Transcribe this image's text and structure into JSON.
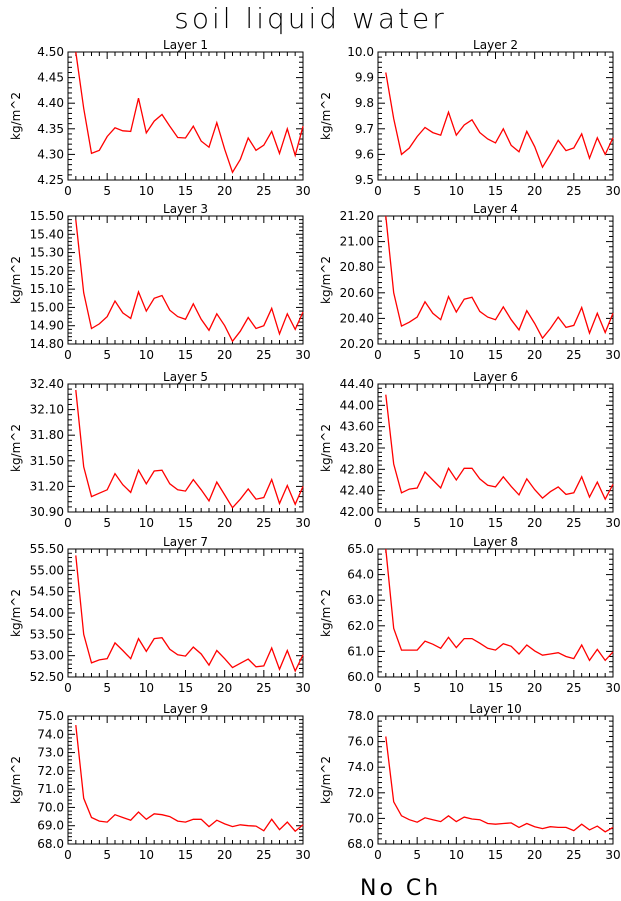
{
  "title": "soil liquid water",
  "footer_label": "No Ch",
  "style": {
    "line_color": "#ff0000",
    "axis_color": "#000000"
  },
  "chart_data": [
    {
      "type": "line",
      "title": "Layer 1",
      "ylabel": "kg/m^2",
      "xlim": [
        0,
        30
      ],
      "xticks": [
        0,
        5,
        10,
        15,
        20,
        25,
        30
      ],
      "ylim": [
        4.25,
        4.5
      ],
      "yticks": [
        "4.25",
        "4.30",
        "4.35",
        "4.40",
        "4.45",
        "4.50"
      ],
      "x": [
        1,
        2,
        3,
        4,
        5,
        6,
        7,
        8,
        9,
        10,
        11,
        12,
        13,
        14,
        15,
        16,
        17,
        18,
        19,
        20,
        21,
        22,
        23,
        24,
        25,
        26,
        27,
        28,
        29,
        30
      ],
      "y": [
        4.51,
        4.39,
        4.302,
        4.308,
        4.335,
        4.352,
        4.346,
        4.345,
        4.41,
        4.342,
        4.365,
        4.378,
        4.355,
        4.333,
        4.332,
        4.355,
        4.326,
        4.314,
        4.362,
        4.31,
        4.265,
        4.29,
        4.332,
        4.308,
        4.318,
        4.345,
        4.302,
        4.35,
        4.298,
        4.355
      ]
    },
    {
      "type": "line",
      "title": "Layer 2",
      "ylabel": "kg/m^2",
      "xlim": [
        0,
        30
      ],
      "xticks": [
        0,
        5,
        10,
        15,
        20,
        25,
        30
      ],
      "ylim": [
        9.5,
        10.0
      ],
      "yticks": [
        "9.5",
        "9.6",
        "9.7",
        "9.8",
        "9.9",
        "10.0"
      ],
      "x": [
        1,
        2,
        3,
        4,
        5,
        6,
        7,
        8,
        9,
        10,
        11,
        12,
        13,
        14,
        15,
        16,
        17,
        18,
        19,
        20,
        21,
        22,
        23,
        24,
        25,
        26,
        27,
        28,
        29,
        30
      ],
      "y": [
        9.92,
        9.74,
        9.6,
        9.625,
        9.67,
        9.705,
        9.685,
        9.675,
        9.765,
        9.675,
        9.715,
        9.735,
        9.685,
        9.66,
        9.645,
        9.7,
        9.635,
        9.61,
        9.69,
        9.63,
        9.55,
        9.6,
        9.655,
        9.615,
        9.625,
        9.68,
        9.585,
        9.665,
        9.6,
        9.665
      ]
    },
    {
      "type": "line",
      "title": "Layer 3",
      "ylabel": "kg/m^2",
      "xlim": [
        0,
        30
      ],
      "xticks": [
        0,
        5,
        10,
        15,
        20,
        25,
        30
      ],
      "ylim": [
        14.8,
        15.5
      ],
      "yticks": [
        "14.80",
        "14.90",
        "15.00",
        "15.10",
        "15.20",
        "15.30",
        "15.40",
        "15.50"
      ],
      "x": [
        1,
        2,
        3,
        4,
        5,
        6,
        7,
        8,
        9,
        10,
        11,
        12,
        13,
        14,
        15,
        16,
        17,
        18,
        19,
        20,
        21,
        22,
        23,
        24,
        25,
        26,
        27,
        28,
        29,
        30
      ],
      "y": [
        15.48,
        15.08,
        14.885,
        14.91,
        14.95,
        15.035,
        14.97,
        14.94,
        15.085,
        14.98,
        15.05,
        15.065,
        14.985,
        14.95,
        14.935,
        15.02,
        14.935,
        14.875,
        14.965,
        14.9,
        14.815,
        14.87,
        14.945,
        14.885,
        14.9,
        14.995,
        14.855,
        14.965,
        14.88,
        14.975
      ]
    },
    {
      "type": "line",
      "title": "Layer 4",
      "ylabel": "kg/m^2",
      "xlim": [
        0,
        30
      ],
      "xticks": [
        0,
        5,
        10,
        15,
        20,
        25,
        30
      ],
      "ylim": [
        20.2,
        21.2
      ],
      "yticks": [
        "20.20",
        "20.40",
        "20.60",
        "20.80",
        "21.00",
        "21.20"
      ],
      "x": [
        1,
        2,
        3,
        4,
        5,
        6,
        7,
        8,
        9,
        10,
        11,
        12,
        13,
        14,
        15,
        16,
        17,
        18,
        19,
        20,
        21,
        22,
        23,
        24,
        25,
        26,
        27,
        28,
        29,
        30
      ],
      "y": [
        21.2,
        20.6,
        20.34,
        20.37,
        20.41,
        20.53,
        20.44,
        20.39,
        20.57,
        20.45,
        20.55,
        20.565,
        20.455,
        20.41,
        20.39,
        20.49,
        20.39,
        20.31,
        20.46,
        20.36,
        20.245,
        20.32,
        20.41,
        20.33,
        20.345,
        20.485,
        20.285,
        20.44,
        20.29,
        20.44
      ]
    },
    {
      "type": "line",
      "title": "Layer 5",
      "ylabel": "kg/m^2",
      "xlim": [
        0,
        30
      ],
      "xticks": [
        0,
        5,
        10,
        15,
        20,
        25,
        30
      ],
      "ylim": [
        30.9,
        32.4
      ],
      "yticks": [
        "30.90",
        "31.20",
        "31.50",
        "31.80",
        "32.10",
        "32.40"
      ],
      "x": [
        1,
        2,
        3,
        4,
        5,
        6,
        7,
        8,
        9,
        10,
        11,
        12,
        13,
        14,
        15,
        16,
        17,
        18,
        19,
        20,
        21,
        22,
        23,
        24,
        25,
        26,
        27,
        28,
        29,
        30
      ],
      "y": [
        32.33,
        31.43,
        31.08,
        31.12,
        31.16,
        31.35,
        31.22,
        31.13,
        31.39,
        31.23,
        31.38,
        31.39,
        31.23,
        31.16,
        31.145,
        31.28,
        31.16,
        31.03,
        31.25,
        31.1,
        30.95,
        31.05,
        31.17,
        31.05,
        31.07,
        31.28,
        31.0,
        31.21,
        30.99,
        31.2
      ]
    },
    {
      "type": "line",
      "title": "Layer 6",
      "ylabel": "kg/m^2",
      "xlim": [
        0,
        30
      ],
      "xticks": [
        0,
        5,
        10,
        15,
        20,
        25,
        30
      ],
      "ylim": [
        42.0,
        44.4
      ],
      "yticks": [
        "42.00",
        "42.40",
        "42.80",
        "43.20",
        "43.60",
        "44.00",
        "44.40"
      ],
      "x": [
        1,
        2,
        3,
        4,
        5,
        6,
        7,
        8,
        9,
        10,
        11,
        12,
        13,
        14,
        15,
        16,
        17,
        18,
        19,
        20,
        21,
        22,
        23,
        24,
        25,
        26,
        27,
        28,
        29,
        30
      ],
      "y": [
        44.2,
        42.9,
        42.36,
        42.43,
        42.45,
        42.75,
        42.6,
        42.45,
        42.82,
        42.6,
        42.82,
        42.82,
        42.62,
        42.5,
        42.47,
        42.66,
        42.48,
        42.32,
        42.62,
        42.42,
        42.26,
        42.38,
        42.47,
        42.33,
        42.36,
        42.66,
        42.28,
        42.56,
        42.24,
        42.52
      ]
    },
    {
      "type": "line",
      "title": "Layer 7",
      "ylabel": "kg/m^2",
      "xlim": [
        0,
        30
      ],
      "xticks": [
        0,
        5,
        10,
        15,
        20,
        25,
        30
      ],
      "ylim": [
        52.5,
        55.5
      ],
      "yticks": [
        "52.50",
        "53.00",
        "53.50",
        "54.00",
        "54.50",
        "55.00",
        "55.50"
      ],
      "x": [
        1,
        2,
        3,
        4,
        5,
        6,
        7,
        8,
        9,
        10,
        11,
        12,
        13,
        14,
        15,
        16,
        17,
        18,
        19,
        20,
        21,
        22,
        23,
        24,
        25,
        26,
        27,
        28,
        29,
        30
      ],
      "y": [
        55.35,
        53.5,
        52.83,
        52.9,
        52.93,
        53.3,
        53.12,
        52.93,
        53.4,
        53.1,
        53.4,
        53.42,
        53.15,
        53.02,
        52.99,
        53.2,
        53.04,
        52.78,
        53.12,
        52.93,
        52.72,
        52.82,
        52.92,
        52.74,
        52.76,
        53.18,
        52.68,
        53.12,
        52.64,
        53.02
      ]
    },
    {
      "type": "line",
      "title": "Layer 8",
      "ylabel": "kg/m^2",
      "xlim": [
        0,
        30
      ],
      "xticks": [
        0,
        5,
        10,
        15,
        20,
        25,
        30
      ],
      "ylim": [
        60.0,
        65.0
      ],
      "yticks": [
        "60.0",
        "61.0",
        "62.0",
        "63.0",
        "64.0",
        "65.0"
      ],
      "x": [
        1,
        2,
        3,
        4,
        5,
        6,
        7,
        8,
        9,
        10,
        11,
        12,
        13,
        14,
        15,
        16,
        17,
        18,
        19,
        20,
        21,
        22,
        23,
        24,
        25,
        26,
        27,
        28,
        29,
        30
      ],
      "y": [
        65.0,
        61.9,
        61.05,
        61.05,
        61.05,
        61.4,
        61.28,
        61.12,
        61.55,
        61.15,
        61.5,
        61.5,
        61.32,
        61.12,
        61.05,
        61.3,
        61.2,
        60.9,
        61.25,
        61.02,
        60.85,
        60.9,
        60.95,
        60.8,
        60.72,
        61.25,
        60.65,
        61.08,
        60.65,
        60.98
      ]
    },
    {
      "type": "line",
      "title": "Layer 9",
      "ylabel": "kg/m^2",
      "xlim": [
        0,
        30
      ],
      "xticks": [
        0,
        5,
        10,
        15,
        20,
        25,
        30
      ],
      "ylim": [
        68.0,
        75.0
      ],
      "yticks": [
        "68.0",
        "69.0",
        "70.0",
        "71.0",
        "72.0",
        "73.0",
        "74.0",
        "75.0"
      ],
      "x": [
        1,
        2,
        3,
        4,
        5,
        6,
        7,
        8,
        9,
        10,
        11,
        12,
        13,
        14,
        15,
        16,
        17,
        18,
        19,
        20,
        21,
        22,
        23,
        24,
        25,
        26,
        27,
        28,
        29,
        30
      ],
      "y": [
        74.5,
        70.5,
        69.45,
        69.25,
        69.2,
        69.6,
        69.45,
        69.3,
        69.75,
        69.35,
        69.65,
        69.6,
        69.5,
        69.25,
        69.2,
        69.35,
        69.35,
        68.95,
        69.3,
        69.1,
        68.95,
        69.05,
        69.0,
        68.98,
        68.72,
        69.35,
        68.78,
        69.2,
        68.7,
        69.05
      ]
    },
    {
      "type": "line",
      "title": "Layer 10",
      "ylabel": "kg/m^2",
      "xlim": [
        0,
        30
      ],
      "xticks": [
        0,
        5,
        10,
        15,
        20,
        25,
        30
      ],
      "ylim": [
        68.0,
        78.0
      ],
      "yticks": [
        "68.0",
        "70.0",
        "72.0",
        "74.0",
        "76.0",
        "78.0"
      ],
      "x": [
        1,
        2,
        3,
        4,
        5,
        6,
        7,
        8,
        9,
        10,
        11,
        12,
        13,
        14,
        15,
        16,
        17,
        18,
        19,
        20,
        21,
        22,
        23,
        24,
        25,
        26,
        27,
        28,
        29,
        30
      ],
      "y": [
        76.4,
        71.3,
        70.2,
        69.9,
        69.7,
        70.05,
        69.9,
        69.75,
        70.2,
        69.75,
        70.1,
        69.95,
        69.9,
        69.6,
        69.55,
        69.6,
        69.65,
        69.3,
        69.6,
        69.35,
        69.2,
        69.35,
        69.3,
        69.3,
        69.05,
        69.55,
        69.1,
        69.4,
        68.95,
        69.3
      ]
    }
  ]
}
